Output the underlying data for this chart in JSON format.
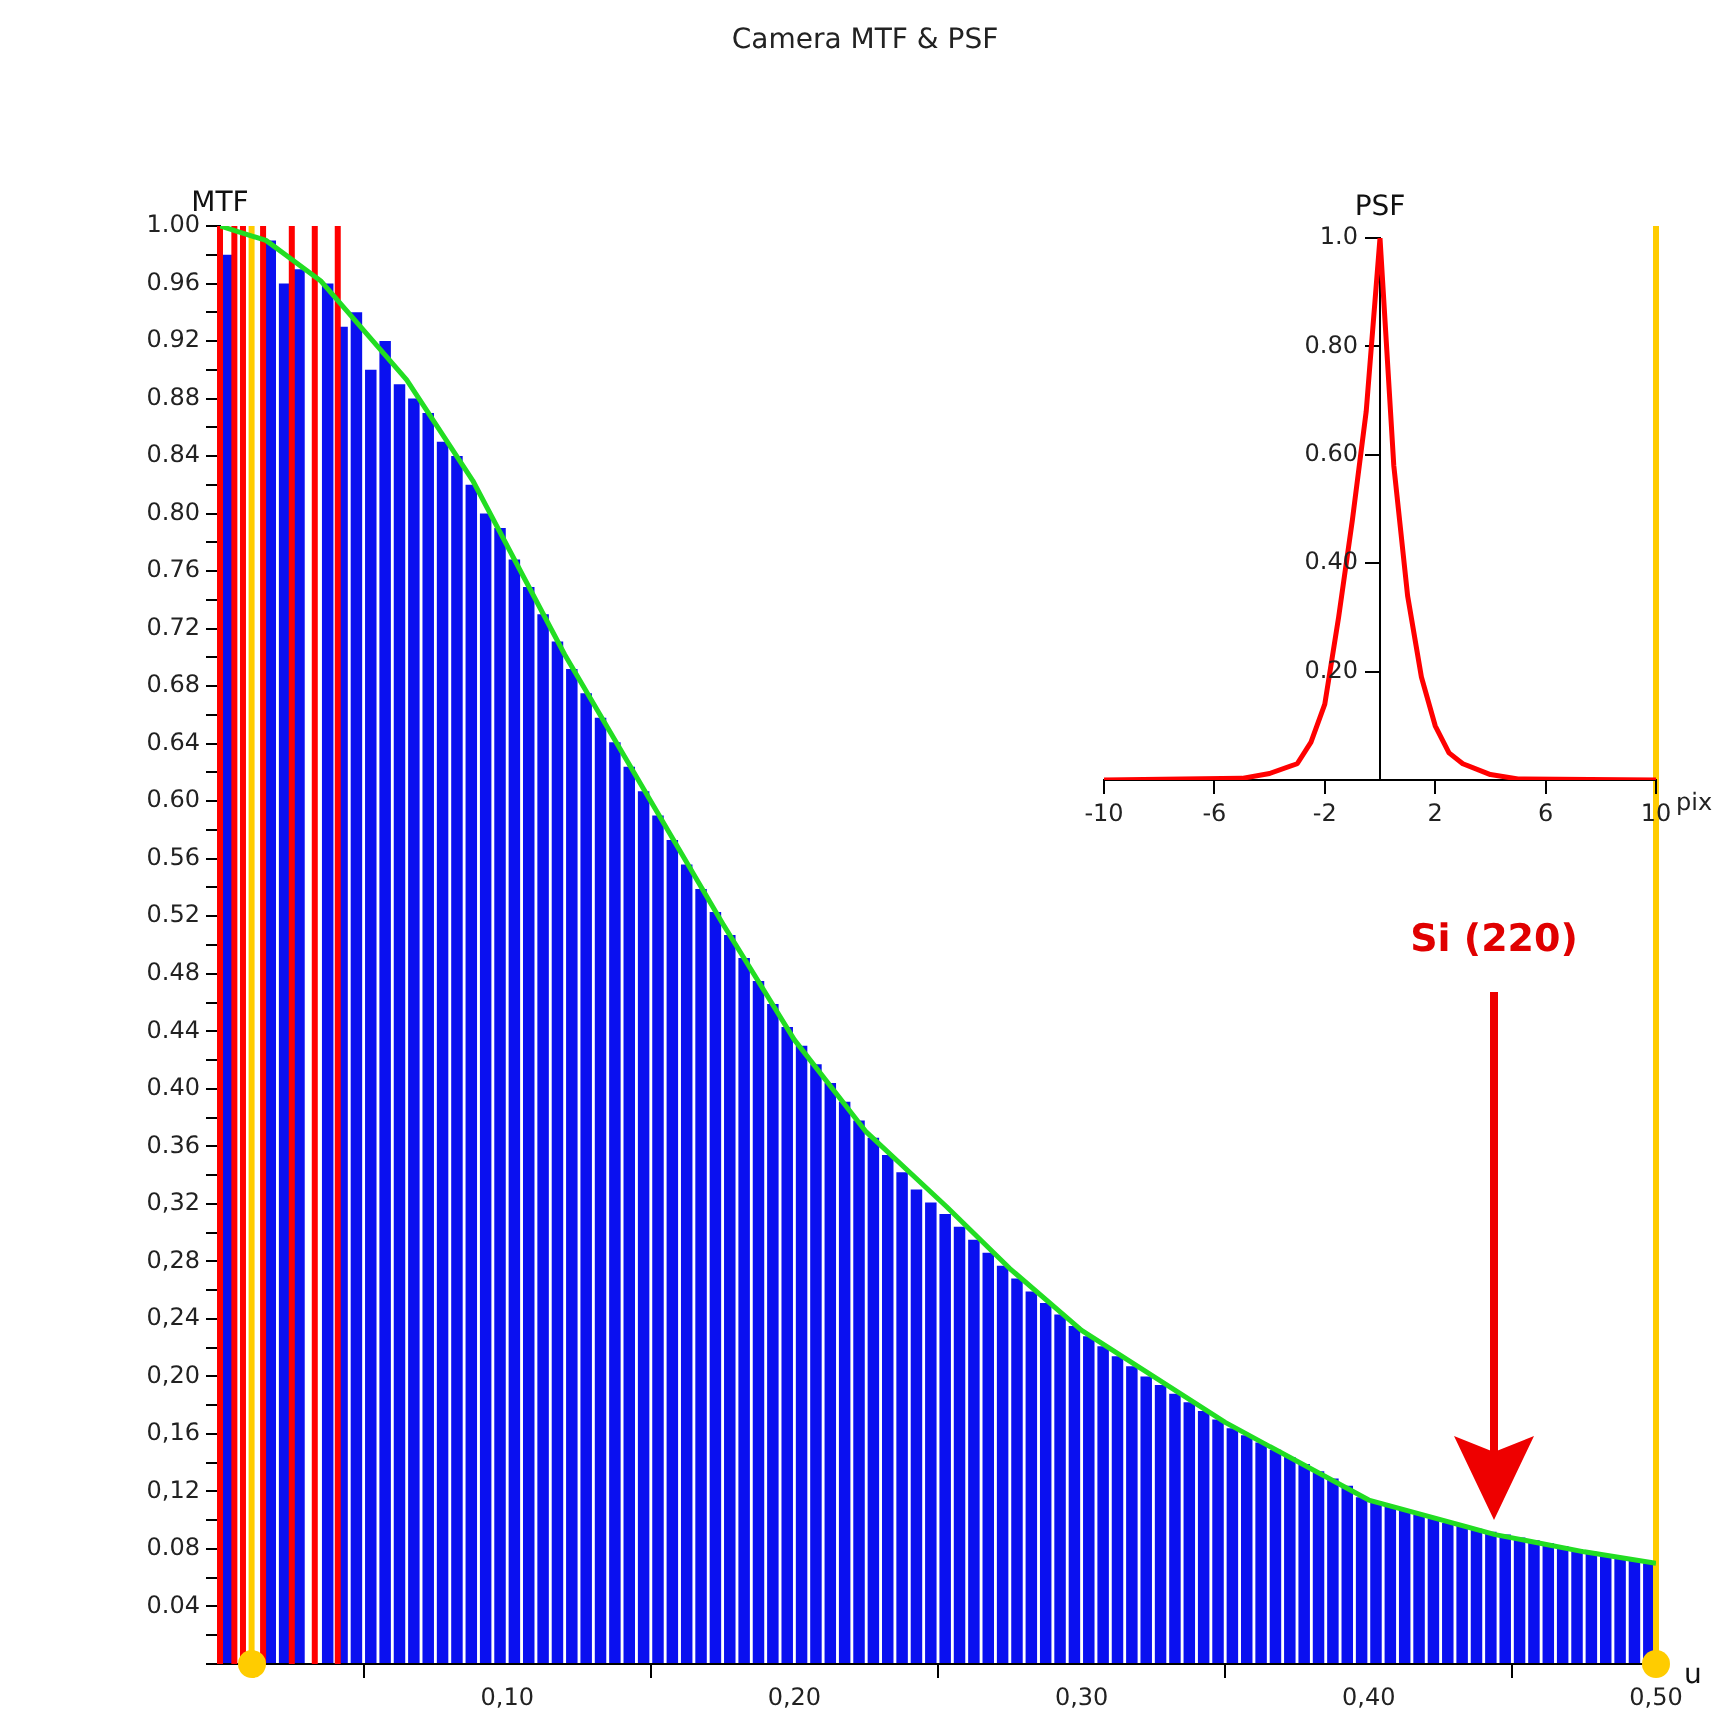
{
  "chart_data": [
    {
      "type": "histogram",
      "title": "Camera MTF & PSF",
      "xlabel": "u",
      "ylabel": "MTF",
      "bins": [
        0,
        0.005,
        0.01,
        0.015,
        0.02,
        0.025,
        0.03,
        0.035,
        0.04,
        0.045,
        0.05,
        0.055,
        0.06,
        0.065,
        0.07,
        0.075,
        0.08,
        0.085,
        0.09,
        0.095,
        0.1,
        0.105,
        0.11,
        0.115,
        0.12,
        0.125,
        0.13,
        0.135,
        0.14,
        0.145,
        0.15,
        0.155,
        0.16,
        0.165,
        0.17,
        0.175,
        0.18,
        0.185,
        0.19,
        0.195,
        0.2,
        0.205,
        0.21,
        0.215,
        0.22,
        0.225,
        0.23,
        0.235,
        0.24,
        0.245,
        0.25,
        0.255,
        0.26,
        0.265,
        0.27,
        0.275,
        0.28,
        0.285,
        0.29,
        0.295,
        0.3,
        0.305,
        0.31,
        0.315,
        0.32,
        0.325,
        0.33,
        0.335,
        0.34,
        0.345,
        0.35,
        0.355,
        0.36,
        0.365,
        0.37,
        0.375,
        0.38,
        0.385,
        0.39,
        0.395,
        0.4,
        0.405,
        0.41,
        0.415,
        0.42,
        0.425,
        0.43,
        0.435,
        0.44,
        0.445,
        0.45,
        0.455,
        0.46,
        0.465,
        0.47,
        0.475,
        0.48,
        0.485,
        0.49,
        0.495,
        0.5
      ],
      "series": [
        {
          "type": "histogram",
          "color": "#0a10f0",
          "values": [
            0.98,
            null,
            null,
            0.99,
            0.96,
            0.97,
            null,
            0.96,
            0.93,
            0.94,
            0.9,
            0.92,
            0.89,
            0.88,
            0.87,
            0.85,
            0.84,
            0.82,
            0.8,
            0.79,
            0.768,
            0.749,
            0.73,
            0.711,
            0.692,
            0.675,
            0.658,
            0.641,
            0.624,
            0.607,
            0.59,
            0.573,
            0.556,
            0.539,
            0.523,
            0.507,
            0.491,
            0.475,
            0.459,
            0.443,
            0.43,
            0.417,
            0.404,
            0.391,
            0.378,
            0.366,
            0.354,
            0.342,
            0.33,
            0.321,
            0.313,
            0.304,
            0.295,
            0.286,
            0.277,
            0.268,
            0.259,
            0.251,
            0.243,
            0.235,
            0.228,
            0.221,
            0.214,
            0.207,
            0.2,
            0.194,
            0.188,
            0.182,
            0.176,
            0.17,
            0.164,
            0.159,
            0.154,
            0.149,
            0.144,
            0.139,
            0.134,
            0.129,
            0.124,
            0.116,
            0.113,
            0.11,
            0.107,
            0.104,
            0.101,
            0.098,
            0.096,
            0.094,
            0.092,
            0.09,
            0.088,
            0.086,
            0.084,
            0.082,
            0.08,
            0.078,
            0.076,
            0.074,
            0.072,
            0.07
          ]
        },
        {
          "type": "line",
          "color": "#22dd22",
          "x": [
            0,
            0.016,
            0.035,
            0.065,
            0.088,
            0.12,
            0.15,
            0.175,
            0.2,
            0.225,
            0.253,
            0.275,
            0.3,
            0.35,
            0.4,
            0.444,
            0.475,
            0.5
          ],
          "values": [
            1.0,
            0.99,
            0.962,
            0.893,
            0.823,
            0.702,
            0.6,
            0.515,
            0.434,
            0.37,
            0.318,
            0.275,
            0.232,
            0.168,
            0.114,
            0.09,
            0.078,
            0.07
          ]
        }
      ],
      "xlim": [
        0,
        0.5
      ],
      "xticks": [
        {
          "value": 0,
          "label": null
        },
        {
          "value": 0.1,
          "label": "0,10"
        },
        {
          "value": 0.2,
          "label": "0,20"
        },
        {
          "value": 0.3,
          "label": "0,30"
        },
        {
          "value": 0.4,
          "label": "0,40"
        },
        {
          "value": 0.5,
          "label": "0,50"
        }
      ],
      "ylim": [
        0,
        1.0
      ],
      "yticks": [
        {
          "value": 0,
          "label": null
        },
        {
          "value": 0.02,
          "label": null
        },
        {
          "value": 0.04,
          "label": "0.04"
        },
        {
          "value": 0.06,
          "label": null
        },
        {
          "value": 0.08,
          "label": "0.08"
        },
        {
          "value": 0.1,
          "label": null
        },
        {
          "value": 0.12,
          "label": "0,12"
        },
        {
          "value": 0.14,
          "label": null
        },
        {
          "value": 0.16,
          "label": "0,16"
        },
        {
          "value": 0.18,
          "label": null
        },
        {
          "value": 0.2,
          "label": "0,20"
        },
        {
          "value": 0.22,
          "label": null
        },
        {
          "value": 0.24,
          "label": "0,24"
        },
        {
          "value": 0.26,
          "label": null
        },
        {
          "value": 0.28,
          "label": "0,28"
        },
        {
          "value": 0.3,
          "label": null
        },
        {
          "value": 0.32,
          "label": "0,32"
        },
        {
          "value": 0.34,
          "label": null
        },
        {
          "value": 0.36,
          "label": "0.36"
        },
        {
          "value": 0.38,
          "label": null
        },
        {
          "value": 0.4,
          "label": "0.40"
        },
        {
          "value": 0.42,
          "label": null
        },
        {
          "value": 0.44,
          "label": "0.44"
        },
        {
          "value": 0.46,
          "label": null
        },
        {
          "value": 0.48,
          "label": "0.48"
        },
        {
          "value": 0.5,
          "label": null
        },
        {
          "value": 0.52,
          "label": "0.52"
        },
        {
          "value": 0.54,
          "label": null
        },
        {
          "value": 0.56,
          "label": "0.56"
        },
        {
          "value": 0.58,
          "label": null
        },
        {
          "value": 0.6,
          "label": "0.60"
        },
        {
          "value": 0.62,
          "label": null
        },
        {
          "value": 0.64,
          "label": "0.64"
        },
        {
          "value": 0.66,
          "label": null
        },
        {
          "value": 0.68,
          "label": "0.68"
        },
        {
          "value": 0.7,
          "label": null
        },
        {
          "value": 0.72,
          "label": "0.72"
        },
        {
          "value": 0.74,
          "label": null
        },
        {
          "value": 0.76,
          "label": "0.76"
        },
        {
          "value": 0.78,
          "label": null
        },
        {
          "value": 0.8,
          "label": "0.80"
        },
        {
          "value": 0.82,
          "label": null
        },
        {
          "value": 0.84,
          "label": "0.84"
        },
        {
          "value": 0.86,
          "label": null
        },
        {
          "value": 0.88,
          "label": "0.88"
        },
        {
          "value": 0.9,
          "label": null
        },
        {
          "value": 0.92,
          "label": "0.92"
        },
        {
          "value": 0.94,
          "label": null
        },
        {
          "value": 0.96,
          "label": "0.96"
        },
        {
          "value": 0.98,
          "label": null
        },
        {
          "value": 1.0,
          "label": "1.00"
        }
      ],
      "ref_lines": [
        {
          "axis": "x",
          "value": 0,
          "color": "#ff0000"
        },
        {
          "axis": "x",
          "value": 0.005,
          "color": "#ff0000"
        },
        {
          "axis": "x",
          "value": 0.008,
          "color": "#ff0000"
        },
        {
          "axis": "x",
          "value": 0.015,
          "color": "#ff0000"
        },
        {
          "axis": "x",
          "value": 0.025,
          "color": "#ff0000"
        },
        {
          "axis": "x",
          "value": 0.033,
          "color": "#ff0000"
        },
        {
          "axis": "x",
          "value": 0.041,
          "color": "#ff0000"
        },
        {
          "axis": "x",
          "value": 0.011,
          "color": "#ffcc00"
        },
        {
          "axis": "x",
          "value": 0.5,
          "color": "#ffcc00"
        }
      ],
      "annotations": [
        "Si (220)"
      ]
    },
    {
      "type": "line",
      "title": "PSF",
      "xlabel": "pix",
      "series": [
        {
          "color": "#ff0000",
          "x": [
            -10,
            -5,
            -4,
            -3,
            -2.5,
            -2,
            -1.5,
            -1,
            -0.5,
            0,
            0.5,
            1,
            1.5,
            2,
            2.5,
            3,
            4,
            5,
            10
          ],
          "values": [
            0,
            0.003,
            0.012,
            0.03,
            0.07,
            0.14,
            0.3,
            0.48,
            0.68,
            1.0,
            0.58,
            0.34,
            0.19,
            0.1,
            0.05,
            0.03,
            0.01,
            0.002,
            0
          ]
        }
      ],
      "xlim": [
        -10,
        10
      ],
      "xticks": [
        -10,
        -6,
        -2,
        2,
        6,
        10
      ],
      "ylim": [
        0,
        1.0
      ],
      "yticks": [
        {
          "value": 0.2,
          "label": "0.20"
        },
        {
          "value": 0.4,
          "label": "0.40"
        },
        {
          "value": 0.6,
          "label": "0.60"
        },
        {
          "value": 0.8,
          "label": "0.80"
        },
        {
          "value": 1.0,
          "label": "1.0"
        }
      ]
    }
  ]
}
